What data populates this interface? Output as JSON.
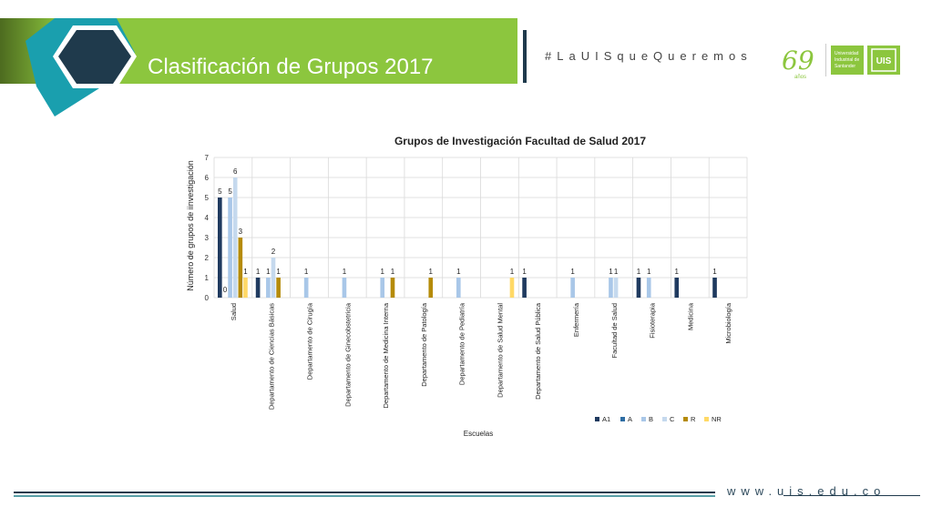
{
  "header": {
    "title": "Clasificación de Grupos 2017",
    "hashtag": "#LaUISqueQueremos",
    "logo_years": "69",
    "logo_years_label": "años",
    "university_name_lines": [
      "Universidad",
      "Industrial de",
      "Santander"
    ],
    "university_mark": "UIS"
  },
  "footer": {
    "url": "www.uis.edu.co"
  },
  "colors": {
    "green": "#8cc63e",
    "dark_teal": "#1f3a4c",
    "teal": "#1a9fae",
    "A1": "#1f3a5f",
    "A": "#2e6da4",
    "B": "#a9c7e8",
    "C": "#c5d9ee",
    "R": "#b58b08",
    "NR": "#ffd966"
  },
  "chart_data": {
    "type": "bar",
    "title": "Grupos de Investigación Facultad de Salud 2017",
    "xlabel": "Escuelas",
    "ylabel": "Número de grupos de iinvestigación",
    "ylim": [
      0,
      7
    ],
    "yticks": [
      "0",
      "1",
      "2",
      "3",
      "4",
      "5",
      "6",
      "7"
    ],
    "grid": true,
    "legend_position": "bottom-right",
    "categories": [
      "Salud",
      "Departamento de Ciencias Básicas",
      "Departamento de Cirugía",
      "Departamento de Ginecobstetricia",
      "Departamento de Medicina Interna",
      "Departamento de Patología",
      "Departamento de Pediatría",
      "Departamento de Salud Mental",
      "Departamento de Salud Pública",
      "Enfermería",
      "Facultad de Salud",
      "Fisioterapia",
      "Medicina",
      "Microbiología"
    ],
    "series": [
      {
        "name": "A1",
        "color": "#1f3a5f",
        "values": [
          5,
          1,
          null,
          null,
          null,
          null,
          null,
          null,
          1,
          null,
          null,
          1,
          1,
          1
        ]
      },
      {
        "name": "A",
        "color": "#2e6da4",
        "values": [
          0,
          null,
          null,
          null,
          null,
          null,
          null,
          null,
          null,
          null,
          null,
          null,
          null,
          null
        ]
      },
      {
        "name": "B",
        "color": "#a9c7e8",
        "values": [
          5,
          1,
          1,
          1,
          1,
          null,
          1,
          null,
          null,
          1,
          1,
          1,
          null,
          null
        ]
      },
      {
        "name": "C",
        "color": "#c5d9ee",
        "values": [
          6,
          2,
          null,
          null,
          null,
          null,
          null,
          null,
          null,
          null,
          1,
          null,
          null,
          null
        ]
      },
      {
        "name": "R",
        "color": "#b58b08",
        "values": [
          3,
          1,
          null,
          null,
          1,
          1,
          null,
          null,
          null,
          null,
          null,
          null,
          null,
          null
        ]
      },
      {
        "name": "NR",
        "color": "#ffd966",
        "values": [
          1,
          null,
          null,
          null,
          null,
          null,
          null,
          1,
          null,
          null,
          null,
          null,
          null,
          null
        ]
      }
    ]
  }
}
